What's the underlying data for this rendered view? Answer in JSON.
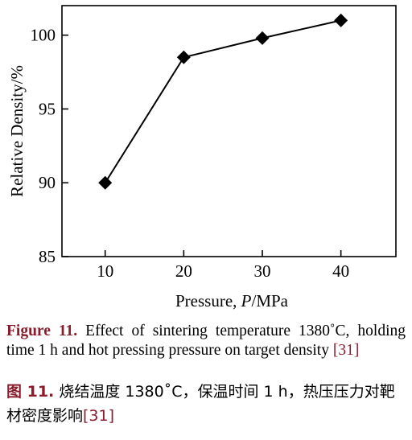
{
  "chart_data": {
    "type": "line",
    "x": [
      10,
      20,
      30,
      40
    ],
    "series": [
      {
        "values": [
          90.0,
          98.5,
          99.8,
          101.0
        ]
      }
    ],
    "xlabel_prefix": "Pressure, ",
    "xlabel_var": "P",
    "xlabel_unit": "/MPa",
    "ylabel": "Relative Density/%",
    "xlim": [
      4.5,
      47
    ],
    "ylim": [
      85,
      102
    ],
    "x_ticks": [
      10,
      20,
      30,
      40
    ],
    "y_ticks": [
      85,
      90,
      95,
      100
    ],
    "marker": "diamond",
    "grid": false
  },
  "caption_en": {
    "label": "Figure 11.",
    "text": " Effect of sintering temperature 1380˚C, holding time 1 h and hot pressing pressure on target density ",
    "ref": "[31]"
  },
  "caption_zh": {
    "label": "图 11.",
    "text": " 烧结温度 1380˚C，保温时间 1 h，热压压力对靶材密度影响",
    "ref": "[31]"
  }
}
